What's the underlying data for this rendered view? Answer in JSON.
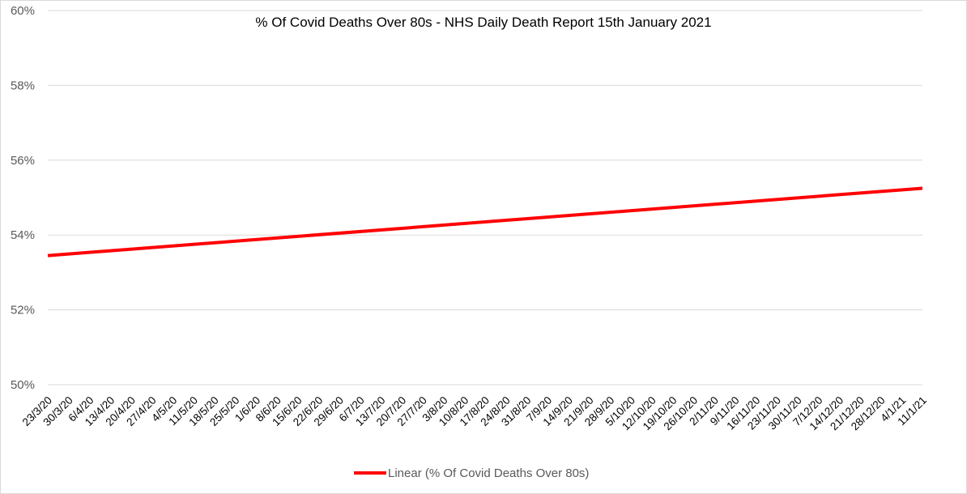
{
  "chart_data": {
    "type": "line",
    "title": "% Of Covid Deaths Over 80s - NHS Daily Death Report 15th January 2021",
    "xlabel": "",
    "ylabel": "",
    "categories": [
      "23/3/20",
      "30/3/20",
      "6/4/20",
      "13/4/20",
      "20/4/20",
      "27/4/20",
      "4/5/20",
      "11/5/20",
      "18/5/20",
      "25/5/20",
      "1/6/20",
      "8/6/20",
      "15/6/20",
      "22/6/20",
      "29/6/20",
      "6/7/20",
      "13/7/20",
      "20/7/20",
      "27/7/20",
      "3/8/20",
      "10/8/20",
      "17/8/20",
      "24/8/20",
      "31/8/20",
      "7/9/20",
      "14/9/20",
      "21/9/20",
      "28/9/20",
      "5/10/20",
      "12/10/20",
      "19/10/20",
      "26/10/20",
      "2/11/20",
      "9/11/20",
      "16/11/20",
      "23/11/20",
      "30/11/20",
      "7/12/20",
      "14/12/20",
      "21/12/20",
      "28/12/20",
      "4/1/21",
      "11/1/21"
    ],
    "y_ticks": [
      "50%",
      "52%",
      "54%",
      "56%",
      "58%",
      "60%"
    ],
    "y_tick_values": [
      50,
      52,
      54,
      56,
      58,
      60
    ],
    "ylim": [
      50,
      60
    ],
    "grid": true,
    "legend_position": "bottom",
    "series": [
      {
        "name": "Linear (% Of Covid Deaths Over 80s)",
        "color": "#ff0000",
        "start": 53.45,
        "end": 55.25
      }
    ]
  }
}
